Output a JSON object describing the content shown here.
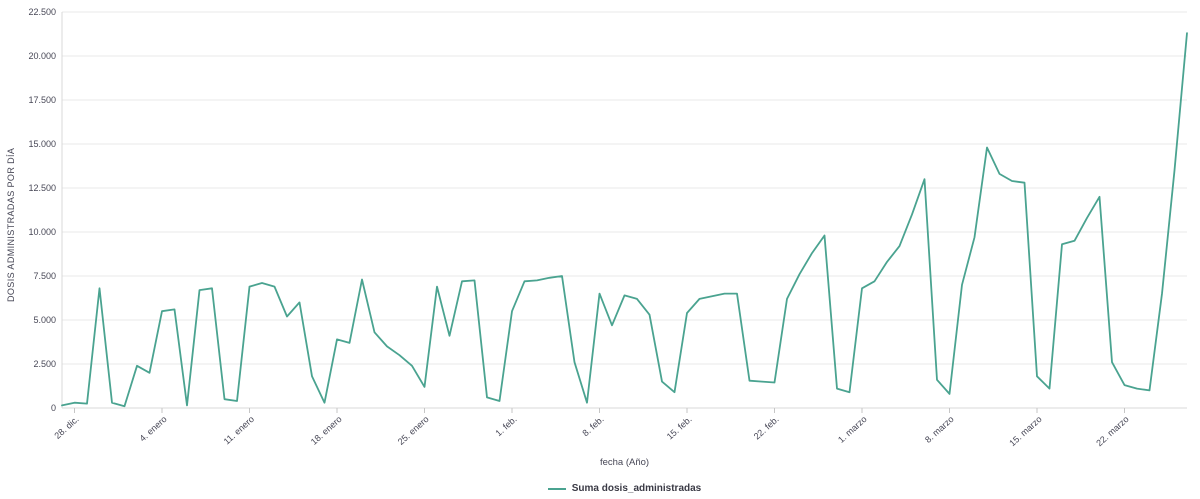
{
  "chart_data": {
    "type": "line",
    "title": "",
    "xlabel": "fecha (Año)",
    "ylabel": "DOSIS ADMINISTRADAS POR DÍA",
    "ylim": [
      0,
      22500
    ],
    "grid": "horizontal",
    "legend_position": "bottom",
    "y_ticks": [
      0,
      2500,
      5000,
      7500,
      10000,
      12500,
      15000,
      17500,
      20000,
      22500
    ],
    "y_tick_labels": [
      "0",
      "2.500",
      "5.000",
      "7.500",
      "10.000",
      "12.500",
      "15.000",
      "17.500",
      "20.000",
      "22.500"
    ],
    "x_tick_labels": [
      "28. dic.",
      "4. enero",
      "11. enero",
      "18. enero",
      "25. enero",
      "1. feb.",
      "8. feb.",
      "15. feb.",
      "22. feb.",
      "1. marzo",
      "8. marzo",
      "15. marzo",
      "22. marzo"
    ],
    "x_tick_indices": [
      1,
      8,
      15,
      22,
      29,
      36,
      43,
      50,
      57,
      64,
      71,
      78,
      85
    ],
    "series": [
      {
        "name": "Suma dosis_administradas",
        "color": "#4aa390",
        "values": [
          150,
          300,
          250,
          6800,
          300,
          100,
          2400,
          2000,
          5500,
          5600,
          150,
          6700,
          6800,
          500,
          400,
          6900,
          7100,
          6900,
          5200,
          6000,
          1800,
          300,
          3900,
          3700,
          7300,
          4300,
          3500,
          3000,
          2400,
          1200,
          6900,
          4100,
          7200,
          7250,
          600,
          400,
          5500,
          7200,
          7250,
          7400,
          7500,
          2600,
          300,
          6500,
          4700,
          6400,
          6200,
          5300,
          1500,
          900,
          5400,
          6200,
          6350,
          6500,
          6500,
          1550,
          1500,
          1450,
          6200,
          7600,
          8800,
          9800,
          1100,
          900,
          6800,
          7200,
          8300,
          9200,
          11000,
          13000,
          1600,
          800,
          7000,
          9700,
          14800,
          13300,
          12900,
          12800,
          1800,
          1100,
          9300,
          9500,
          10800,
          12000,
          2600,
          1300,
          1100,
          1000,
          6500,
          13500,
          21300
        ]
      }
    ]
  },
  "colors": {
    "line": "#4aa390",
    "gridline": "#e9e9e9",
    "axis_line": "#d8d8d8",
    "tick_mark": "#c6c6c6",
    "label_text": "#474756"
  },
  "legend": {
    "label": "Suma dosis_administradas"
  }
}
